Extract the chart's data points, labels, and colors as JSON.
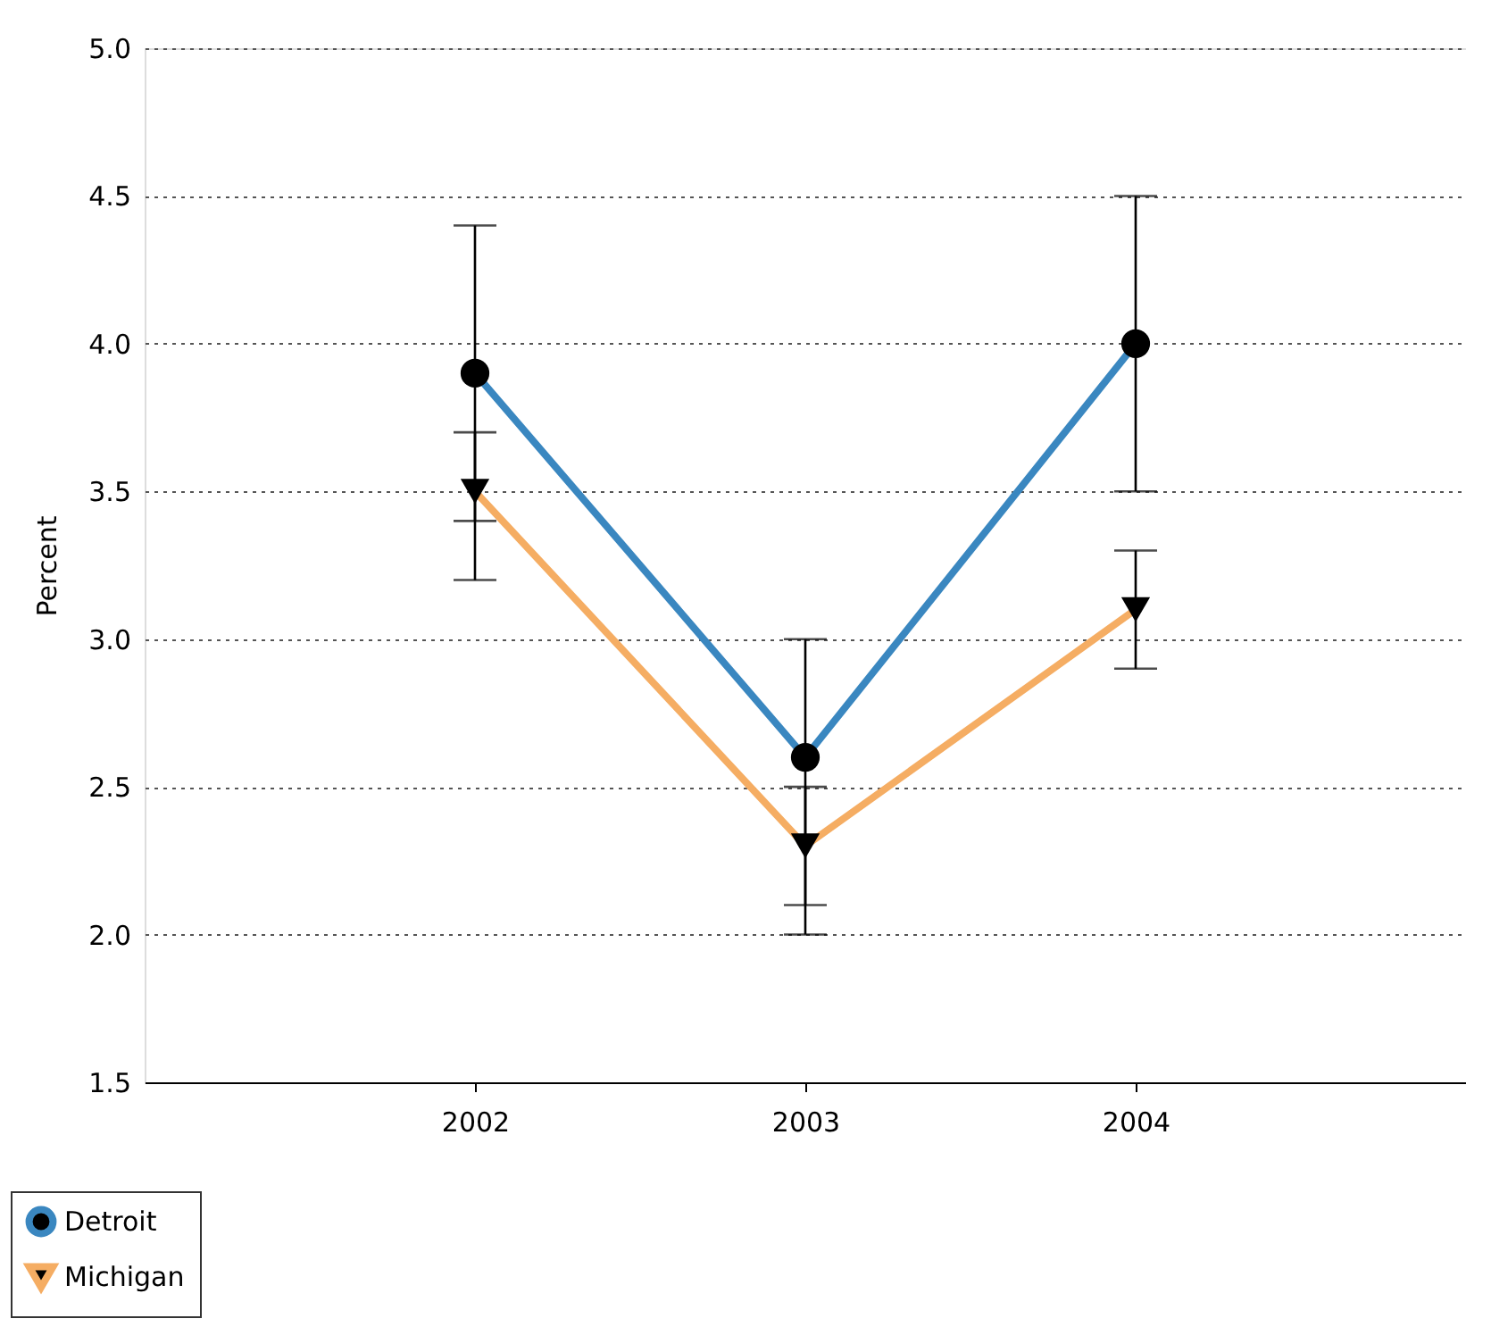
{
  "chart_data": {
    "type": "line",
    "ylabel": "Percent",
    "categories": [
      "2002",
      "2003",
      "2004"
    ],
    "series": [
      {
        "name": "Detroit",
        "color": "#3a87c0",
        "marker": "circle",
        "values": [
          3.9,
          2.6,
          4.0
        ],
        "errors": [
          [
            3.4,
            4.4
          ],
          [
            2.0,
            3.0
          ],
          [
            3.5,
            4.5
          ]
        ]
      },
      {
        "name": "Michigan",
        "color": "#f5ad63",
        "marker": "triangle",
        "values": [
          3.5,
          2.3,
          3.1
        ],
        "errors": [
          [
            3.2,
            3.7
          ],
          [
            2.1,
            2.5
          ],
          [
            2.9,
            3.3
          ]
        ]
      }
    ],
    "ylim": [
      1.5,
      5.0
    ],
    "yticks": [
      1.5,
      {
        "value": 2,
        "label": "2.0"
      },
      2.5,
      {
        "value": 3,
        "label": "3.0"
      },
      3.5,
      {
        "value": 4,
        "label": "4.0"
      },
      4.5,
      {
        "value": 5,
        "label": "5.0"
      }
    ],
    "grid": "y",
    "legend": "bottom left"
  }
}
